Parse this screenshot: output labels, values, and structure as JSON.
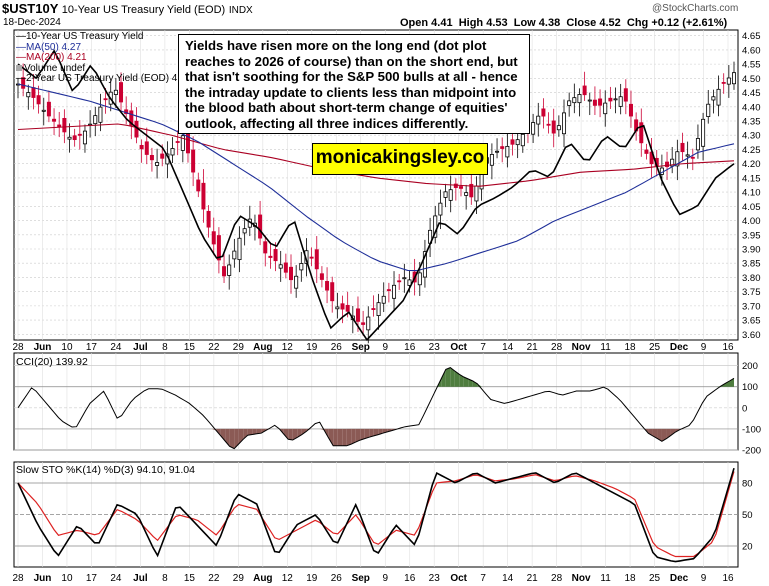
{
  "header": {
    "symbol": "$UST10Y",
    "name": "10-Year US Treasury Yield (EOD)",
    "exchange": "INDX",
    "date": "18-Dec-2024",
    "open": "Open 4.41",
    "high": "High 4.53",
    "low": "Low 4.38",
    "close": "Close 4.52",
    "chg": "Chg +0.12 (+2.61%)",
    "watermark": "@StockCharts.com"
  },
  "legend": {
    "line1": "10-Year US Treasury Yield",
    "line2": "MA(50) 4.27",
    "line3": "MA(200) 4.21",
    "line4": "Volume undef",
    "line5": "2-Year US Treasury Yield (EOD) 4"
  },
  "annotation": {
    "text": "Yields have risen more on the long end (dot plot reaches to 2026 of course) than on the short end, but that isn't soothing for the S&P 500 bulls at all - hence the intraday update to clients less than midpoint into the blood bath about short-term change of equities' outlook, affecting all three indices differently.",
    "brand": "monicakingsley.co"
  },
  "colors": {
    "up": "#000000",
    "down": "#cc0033",
    "ma50": "#1f2f99",
    "ma200": "#aa0022",
    "cci_pos": "#4f7d3f",
    "cci_neg": "#8b5a55",
    "stok": "#000000",
    "stod": "#dd2222",
    "grid": "#cccccc"
  },
  "chart_data": [
    {
      "type": "candlestick",
      "title": "$UST10Y 10-Year US Treasury Yield (EOD)",
      "yrange": [
        3.58,
        4.67
      ],
      "yticks": [
        3.6,
        3.65,
        3.7,
        3.75,
        3.8,
        3.85,
        3.9,
        3.95,
        4.0,
        4.05,
        4.1,
        4.15,
        4.2,
        4.25,
        4.3,
        4.35,
        4.4,
        4.45,
        4.5,
        4.55,
        4.6,
        4.65
      ],
      "xlabels": [
        "28",
        "Jun",
        "10",
        "17",
        "24",
        "Jul",
        "8",
        "15",
        "22",
        "29",
        "Aug",
        "12",
        "19",
        "26",
        "Sep",
        "9",
        "16",
        "23",
        "Oct",
        "7",
        "14",
        "21",
        "28",
        "Nov",
        "11",
        "18",
        "25",
        "Dec",
        "9",
        "16"
      ],
      "close_anchors": [
        4.48,
        4.44,
        4.38,
        4.33,
        4.28,
        4.32,
        4.4,
        4.47,
        4.36,
        4.25,
        4.2,
        4.24,
        4.3,
        4.12,
        3.95,
        3.8,
        3.93,
        4.02,
        3.88,
        3.85,
        3.78,
        3.9,
        3.8,
        3.7,
        3.68,
        3.63,
        3.7,
        3.76,
        3.8,
        3.78,
        3.98,
        4.1,
        4.12,
        4.08,
        4.22,
        4.25,
        4.27,
        4.32,
        4.38,
        4.3,
        4.42,
        4.45,
        4.4,
        4.42,
        4.44,
        4.3,
        4.2,
        4.18,
        4.25,
        4.22,
        4.4,
        4.47,
        4.52
      ],
      "ma50_anchors": [
        4.48,
        4.45,
        4.42,
        4.38,
        4.34,
        4.28,
        4.2,
        4.12,
        4.02,
        3.93,
        3.86,
        3.82,
        3.85,
        3.89,
        3.93,
        4.0,
        4.05,
        4.1,
        4.17,
        4.24,
        4.27
      ],
      "ma200_anchors": [
        4.32,
        4.33,
        4.34,
        4.3,
        4.25,
        4.22,
        4.18,
        4.15,
        4.13,
        4.12,
        4.14,
        4.17,
        4.18,
        4.2,
        4.21
      ],
      "series2_anchors": [
        4.55,
        4.5,
        4.6,
        4.45,
        4.55,
        4.43,
        4.35,
        4.3,
        4.25,
        4.1,
        3.95,
        3.85,
        4.02,
        3.98,
        3.9,
        4.01,
        3.8,
        3.62,
        3.68,
        3.58,
        3.65,
        3.72,
        3.85,
        4.0,
        3.95,
        4.05,
        4.08,
        4.12,
        4.18,
        4.15,
        4.28,
        4.2,
        4.3,
        4.25,
        4.35,
        4.15,
        4.02,
        4.05,
        4.15,
        4.2
      ]
    },
    {
      "type": "line",
      "title": "CCI(20) 139.92",
      "yrange": [
        -200,
        260
      ],
      "yticks": [
        200,
        100,
        0,
        -100,
        -200
      ],
      "values": [
        0,
        100,
        20,
        -60,
        -100,
        20,
        80,
        -60,
        40,
        90,
        90,
        60,
        20,
        -40,
        -120,
        -200,
        -130,
        -120,
        -80,
        -160,
        -120,
        -60,
        -180,
        -180,
        -150,
        -130,
        -110,
        -90,
        -80,
        60,
        200,
        150,
        120,
        40,
        20,
        40,
        60,
        80,
        60,
        80,
        80,
        100,
        40,
        -40,
        -120,
        -160,
        -110,
        -80,
        50,
        100,
        139.92
      ]
    },
    {
      "type": "line",
      "title": "Slow STO %K(14) %D(3) 94.10, 91.04",
      "yrange": [
        0,
        100
      ],
      "yticks": [
        80,
        50,
        20
      ],
      "k_values": [
        80,
        40,
        10,
        40,
        20,
        60,
        50,
        10,
        60,
        40,
        20,
        70,
        60,
        10,
        40,
        50,
        20,
        60,
        10,
        40,
        20,
        90,
        80,
        90,
        80,
        85,
        90,
        80,
        90,
        80,
        70,
        60,
        10,
        5,
        8,
        30,
        94.1
      ],
      "d_values": [
        80,
        60,
        30,
        35,
        30,
        55,
        45,
        25,
        50,
        45,
        30,
        60,
        55,
        25,
        35,
        45,
        30,
        50,
        20,
        35,
        30,
        80,
        82,
        88,
        82,
        84,
        88,
        82,
        87,
        82,
        75,
        65,
        20,
        10,
        10,
        25,
        91.04
      ]
    }
  ]
}
